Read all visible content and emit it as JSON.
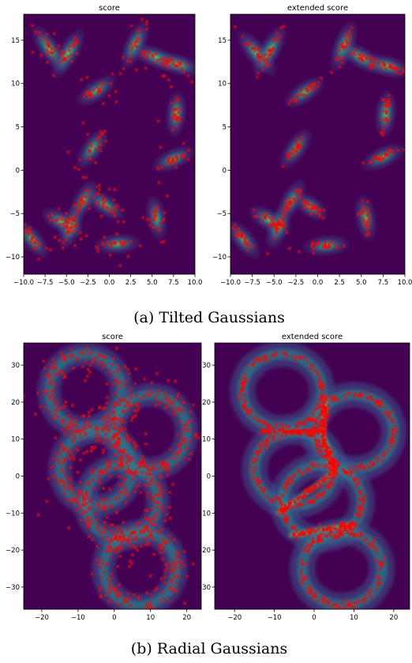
{
  "captions": {
    "a": "(a) Tilted Gaussians",
    "b": "(b) Radial Gaussians"
  },
  "colors": {
    "background": "#440154",
    "density_low": "#3b528b",
    "density_mid": "#21918c",
    "density_high": "#5ec962",
    "sample_marker": "#ff0000"
  },
  "chart_data": [
    {
      "type": "heatmap",
      "panel": "a-left",
      "title": "score",
      "xlabel": "",
      "ylabel": "",
      "xlim": [
        -10,
        10
      ],
      "ylim": [
        -12,
        18
      ],
      "xticks": [
        -10.0,
        -7.5,
        -5.0,
        -2.5,
        0.0,
        2.5,
        5.0,
        7.5,
        10.0
      ],
      "xtick_labels": [
        "−10.0",
        "−7.5",
        "−5.0",
        "−2.5",
        "0.0",
        "2.5",
        "5.0",
        "7.5",
        "10.0"
      ],
      "yticks": [
        -10,
        -5,
        0,
        5,
        10,
        15
      ],
      "ytick_labels": [
        "−10",
        "−5",
        "0",
        "5",
        "10",
        "15"
      ],
      "grid": false,
      "components": [
        {
          "x": -7.0,
          "y": 14.0,
          "angle": -55,
          "len": 3.0,
          "w": 0.5,
          "strength": 1.0
        },
        {
          "x": -4.8,
          "y": 13.5,
          "angle": 60,
          "len": 3.0,
          "w": 0.5,
          "strength": 1.0
        },
        {
          "x": 3.0,
          "y": 14.5,
          "angle": 65,
          "len": 2.8,
          "w": 0.5,
          "strength": 1.0
        },
        {
          "x": 5.5,
          "y": 13.0,
          "angle": -20,
          "len": 2.8,
          "w": 0.5,
          "strength": 1.0
        },
        {
          "x": 8.0,
          "y": 12.2,
          "angle": -15,
          "len": 2.5,
          "w": 0.5,
          "strength": 1.0
        },
        {
          "x": -1.5,
          "y": 9.2,
          "angle": 35,
          "len": 2.5,
          "w": 0.5,
          "strength": 0.9
        },
        {
          "x": 7.8,
          "y": 6.5,
          "angle": 85,
          "len": 2.5,
          "w": 0.5,
          "strength": 1.0
        },
        {
          "x": -2.0,
          "y": 2.5,
          "angle": 55,
          "len": 2.5,
          "w": 0.5,
          "strength": 0.9
        },
        {
          "x": 7.5,
          "y": 1.3,
          "angle": 25,
          "len": 2.5,
          "w": 0.5,
          "strength": 0.9
        },
        {
          "x": -3.0,
          "y": -3.5,
          "angle": 60,
          "len": 2.5,
          "w": 0.5,
          "strength": 0.9
        },
        {
          "x": -0.5,
          "y": -4.0,
          "angle": -35,
          "len": 2.5,
          "w": 0.5,
          "strength": 0.9
        },
        {
          "x": -5.5,
          "y": -6.0,
          "angle": -30,
          "len": 2.5,
          "w": 0.5,
          "strength": 1.0
        },
        {
          "x": -4.5,
          "y": -6.5,
          "angle": 70,
          "len": 2.5,
          "w": 0.5,
          "strength": 1.0
        },
        {
          "x": 5.5,
          "y": -5.5,
          "angle": -80,
          "len": 2.5,
          "w": 0.5,
          "strength": 0.9
        },
        {
          "x": -9.0,
          "y": -8.0,
          "angle": -50,
          "len": 2.5,
          "w": 0.5,
          "strength": 0.9
        },
        {
          "x": 1.0,
          "y": -8.5,
          "angle": 5,
          "len": 2.5,
          "w": 0.5,
          "strength": 0.9
        }
      ],
      "sample_count": 420,
      "sample_spread": 1.9
    },
    {
      "type": "heatmap",
      "panel": "a-right",
      "title": "extended score",
      "xlabel": "",
      "ylabel": "",
      "xlim": [
        -10,
        10
      ],
      "ylim": [
        -12,
        18
      ],
      "xticks": [
        -10.0,
        -7.5,
        -5.0,
        -2.5,
        0.0,
        2.5,
        5.0,
        7.5,
        10.0
      ],
      "xtick_labels": [
        "−10.0",
        "−7.5",
        "−5.0",
        "−2.5",
        "0.0",
        "2.5",
        "5.0",
        "7.5",
        "10.0"
      ],
      "yticks": [
        -10,
        -5,
        0,
        5,
        10,
        15
      ],
      "ytick_labels": [
        "−10",
        "−5",
        "0",
        "5",
        "10",
        "15"
      ],
      "grid": false,
      "components": [
        {
          "x": -7.0,
          "y": 13.5,
          "angle": -50,
          "len": 3.0,
          "w": 0.5,
          "strength": 1.0
        },
        {
          "x": -5.5,
          "y": 13.8,
          "angle": 60,
          "len": 3.0,
          "w": 0.5,
          "strength": 1.0
        },
        {
          "x": 3.0,
          "y": 14.3,
          "angle": 70,
          "len": 2.8,
          "w": 0.5,
          "strength": 1.0
        },
        {
          "x": 5.0,
          "y": 13.0,
          "angle": -30,
          "len": 2.8,
          "w": 0.5,
          "strength": 1.0
        },
        {
          "x": 8.0,
          "y": 12.0,
          "angle": -15,
          "len": 2.5,
          "w": 0.5,
          "strength": 1.0
        },
        {
          "x": -1.5,
          "y": 9.0,
          "angle": 35,
          "len": 2.5,
          "w": 0.5,
          "strength": 0.9
        },
        {
          "x": 7.8,
          "y": 6.5,
          "angle": 85,
          "len": 2.5,
          "w": 0.5,
          "strength": 1.0
        },
        {
          "x": -2.5,
          "y": 2.5,
          "angle": 55,
          "len": 2.5,
          "w": 0.5,
          "strength": 0.9
        },
        {
          "x": 7.5,
          "y": 1.5,
          "angle": 25,
          "len": 2.5,
          "w": 0.5,
          "strength": 0.9
        },
        {
          "x": -3.0,
          "y": -3.5,
          "angle": 60,
          "len": 2.5,
          "w": 0.5,
          "strength": 0.9
        },
        {
          "x": -0.8,
          "y": -4.2,
          "angle": -35,
          "len": 2.0,
          "w": 0.5,
          "strength": 0.9
        },
        {
          "x": -5.5,
          "y": -5.8,
          "angle": -30,
          "len": 2.5,
          "w": 0.5,
          "strength": 1.0
        },
        {
          "x": -4.5,
          "y": -6.5,
          "angle": 70,
          "len": 2.5,
          "w": 0.5,
          "strength": 1.0
        },
        {
          "x": 5.5,
          "y": -5.5,
          "angle": -80,
          "len": 2.5,
          "w": 0.5,
          "strength": 0.9
        },
        {
          "x": -8.5,
          "y": -8.0,
          "angle": -50,
          "len": 2.5,
          "w": 0.5,
          "strength": 0.9
        },
        {
          "x": 1.0,
          "y": -8.7,
          "angle": 5,
          "len": 2.5,
          "w": 0.5,
          "strength": 0.9
        }
      ],
      "sample_count": 420,
      "sample_spread": 0.9
    },
    {
      "type": "heatmap",
      "panel": "b-left",
      "title": "score",
      "xlabel": "",
      "ylabel": "",
      "xlim": [
        -25,
        24
      ],
      "ylim": [
        -36,
        36
      ],
      "xticks": [
        -20,
        -10,
        0,
        10,
        20
      ],
      "xtick_labels": [
        "−20",
        "−10",
        "0",
        "10",
        "20"
      ],
      "yticks": [
        -30,
        -20,
        -10,
        0,
        10,
        20,
        30
      ],
      "ytick_labels": [
        "−30",
        "−20",
        "−10",
        "0",
        "10",
        "20",
        "30"
      ],
      "grid": false,
      "rings": [
        {
          "x": -8,
          "y": 23,
          "r": 10
        },
        {
          "x": 10,
          "y": 12,
          "r": 10
        },
        {
          "x": -5,
          "y": 2,
          "r": 10
        },
        {
          "x": 2,
          "y": -7,
          "r": 10
        },
        {
          "x": 7,
          "y": -25,
          "r": 10
        }
      ],
      "sample_count": 900,
      "sample_spread": 3.0
    },
    {
      "type": "heatmap",
      "panel": "b-right",
      "title": "extended score",
      "xlabel": "",
      "ylabel": "",
      "xlim": [
        -25,
        24
      ],
      "ylim": [
        -36,
        36
      ],
      "xticks": [
        -20,
        -10,
        0,
        10,
        20
      ],
      "xtick_labels": [
        "−20",
        "−10",
        "0",
        "10",
        "20"
      ],
      "yticks": [
        -30,
        -20,
        -10,
        0,
        10,
        20,
        30
      ],
      "ytick_labels": [
        "−30",
        "−20",
        "−10",
        "0",
        "10",
        "20",
        "30"
      ],
      "grid": false,
      "rings": [
        {
          "x": -8,
          "y": 23,
          "r": 10
        },
        {
          "x": 10,
          "y": 12,
          "r": 10
        },
        {
          "x": -5,
          "y": 2,
          "r": 10
        },
        {
          "x": 2,
          "y": -7,
          "r": 10
        },
        {
          "x": 7,
          "y": -25,
          "r": 10
        }
      ],
      "bridges": [
        {
          "from": [
            -14,
            12
          ],
          "to": [
            2,
            12
          ]
        },
        {
          "from": [
            2,
            12
          ],
          "to": [
            3,
            21
          ]
        },
        {
          "from": [
            2,
            12
          ],
          "to": [
            5,
            1
          ]
        },
        {
          "from": [
            5,
            1
          ],
          "to": [
            -9,
            -10
          ]
        },
        {
          "from": [
            -6,
            -16
          ],
          "to": [
            10,
            -13
          ]
        }
      ],
      "sample_count": 900,
      "sample_spread": 0.9
    }
  ]
}
